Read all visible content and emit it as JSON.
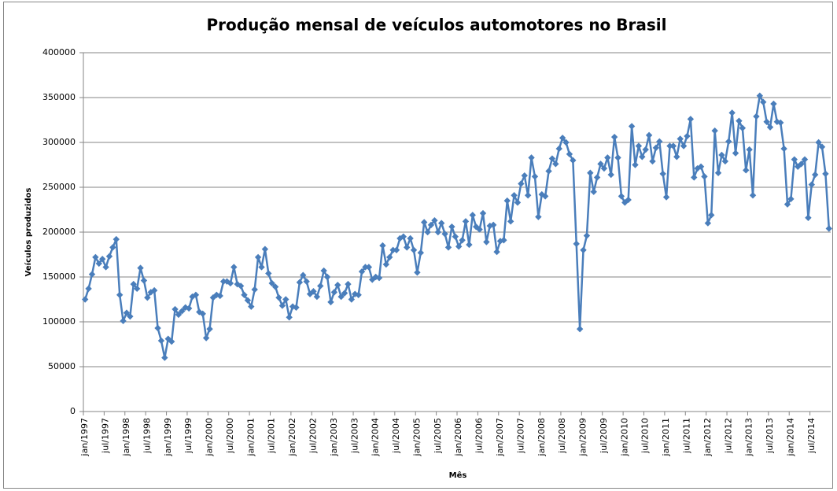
{
  "chart_data": {
    "type": "line",
    "title": "Produção mensal de veículos automotores no Brasil",
    "x_label": "Mês",
    "y_label": "Veículos produzidos",
    "categories": [
      "jan/1997",
      null,
      null,
      null,
      null,
      null,
      "jul/1997",
      null,
      null,
      null,
      null,
      null,
      "jan/1998",
      null,
      null,
      null,
      null,
      null,
      "jul/1998",
      null,
      null,
      null,
      null,
      null,
      "jan/1999",
      null,
      null,
      null,
      null,
      null,
      "jul/1999",
      null,
      null,
      null,
      null,
      null,
      "jan/2000",
      null,
      null,
      null,
      null,
      null,
      "jul/2000",
      null,
      null,
      null,
      null,
      null,
      "jan/2001",
      null,
      null,
      null,
      null,
      null,
      "jul/2001",
      null,
      null,
      null,
      null,
      null,
      "jan/2002",
      null,
      null,
      null,
      null,
      null,
      "jul/2002",
      null,
      null,
      null,
      null,
      null,
      "jan/2003",
      null,
      null,
      null,
      null,
      null,
      "jul/2003",
      null,
      null,
      null,
      null,
      null,
      "jan/2004",
      null,
      null,
      null,
      null,
      null,
      "jul/2004",
      null,
      null,
      null,
      null,
      null,
      "jan/2005",
      null,
      null,
      null,
      null,
      null,
      "jul/2005",
      null,
      null,
      null,
      null,
      null,
      "jan/2006",
      null,
      null,
      null,
      null,
      null,
      "jul/2006",
      null,
      null,
      null,
      null,
      null,
      "jan/2007",
      null,
      null,
      null,
      null,
      null,
      "jul/2007",
      null,
      null,
      null,
      null,
      null,
      "jan/2008",
      null,
      null,
      null,
      null,
      null,
      "jul/2008",
      null,
      null,
      null,
      null,
      null,
      "jan/2009",
      null,
      null,
      null,
      null,
      null,
      "jul/2009",
      null,
      null,
      null,
      null,
      null,
      "jan/2010",
      null,
      null,
      null,
      null,
      null,
      "jul/2010",
      null,
      null,
      null,
      null,
      null,
      "jan/2011",
      null,
      null,
      null,
      null,
      null,
      "jul/2011",
      null,
      null,
      null,
      null,
      null,
      "jan/2012",
      null,
      null,
      null,
      null,
      null,
      "jul/2012",
      null,
      null,
      null,
      null,
      null,
      "jan/2013",
      null,
      null,
      null,
      null,
      null,
      "jul/2013",
      null,
      null,
      null,
      null,
      null,
      "jan/2014",
      null,
      null,
      null,
      null,
      null,
      "jul/2014",
      null,
      null,
      null,
      null,
      null
    ],
    "values": [
      125000,
      137000,
      153000,
      172000,
      165000,
      170000,
      161000,
      173000,
      183000,
      192000,
      130000,
      101000,
      110000,
      106000,
      142000,
      137000,
      160000,
      146000,
      127000,
      133000,
      135000,
      93000,
      79000,
      60000,
      81000,
      78000,
      114000,
      108000,
      112000,
      116000,
      115000,
      128000,
      130000,
      111000,
      109000,
      82000,
      92000,
      127000,
      130000,
      129000,
      145000,
      145000,
      143000,
      161000,
      142000,
      140000,
      130000,
      124000,
      117000,
      136000,
      172000,
      161000,
      181000,
      154000,
      143000,
      139000,
      127000,
      118000,
      125000,
      105000,
      117000,
      116000,
      144000,
      152000,
      145000,
      131000,
      134000,
      128000,
      140000,
      157000,
      150000,
      122000,
      133000,
      141000,
      128000,
      132000,
      142000,
      125000,
      131000,
      130000,
      156000,
      161000,
      161000,
      147000,
      150000,
      149000,
      185000,
      164000,
      172000,
      180000,
      180000,
      193000,
      195000,
      183000,
      193000,
      180000,
      155000,
      177000,
      211000,
      200000,
      208000,
      213000,
      200000,
      210000,
      198000,
      183000,
      206000,
      195000,
      184000,
      191000,
      212000,
      186000,
      219000,
      206000,
      203000,
      221000,
      189000,
      207000,
      208000,
      178000,
      190000,
      191000,
      235000,
      212000,
      241000,
      233000,
      254000,
      263000,
      241000,
      283000,
      262000,
      217000,
      242000,
      240000,
      268000,
      282000,
      276000,
      293000,
      305000,
      300000,
      287000,
      280000,
      187000,
      92000,
      180000,
      196000,
      266000,
      245000,
      261000,
      276000,
      271000,
      283000,
      264000,
      306000,
      283000,
      240000,
      233000,
      236000,
      318000,
      275000,
      296000,
      284000,
      292000,
      308000,
      279000,
      294000,
      301000,
      265000,
      239000,
      296000,
      296000,
      284000,
      304000,
      296000,
      307000,
      326000,
      261000,
      271000,
      273000,
      262000,
      210000,
      219000,
      313000,
      266000,
      286000,
      279000,
      301000,
      333000,
      288000,
      324000,
      316000,
      269000,
      292000,
      241000,
      329000,
      352000,
      345000,
      323000,
      317000,
      343000,
      323000,
      322000,
      293000,
      231000,
      237000,
      281000,
      273000,
      276000,
      281000,
      216000,
      253000,
      264000,
      300000,
      295000,
      265000,
      204000
    ],
    "color": "#4a7ebb",
    "ylim": [
      0,
      400000
    ],
    "yticks": [
      0,
      50000,
      100000,
      150000,
      200000,
      250000,
      300000,
      350000,
      400000
    ],
    "grid": true
  }
}
